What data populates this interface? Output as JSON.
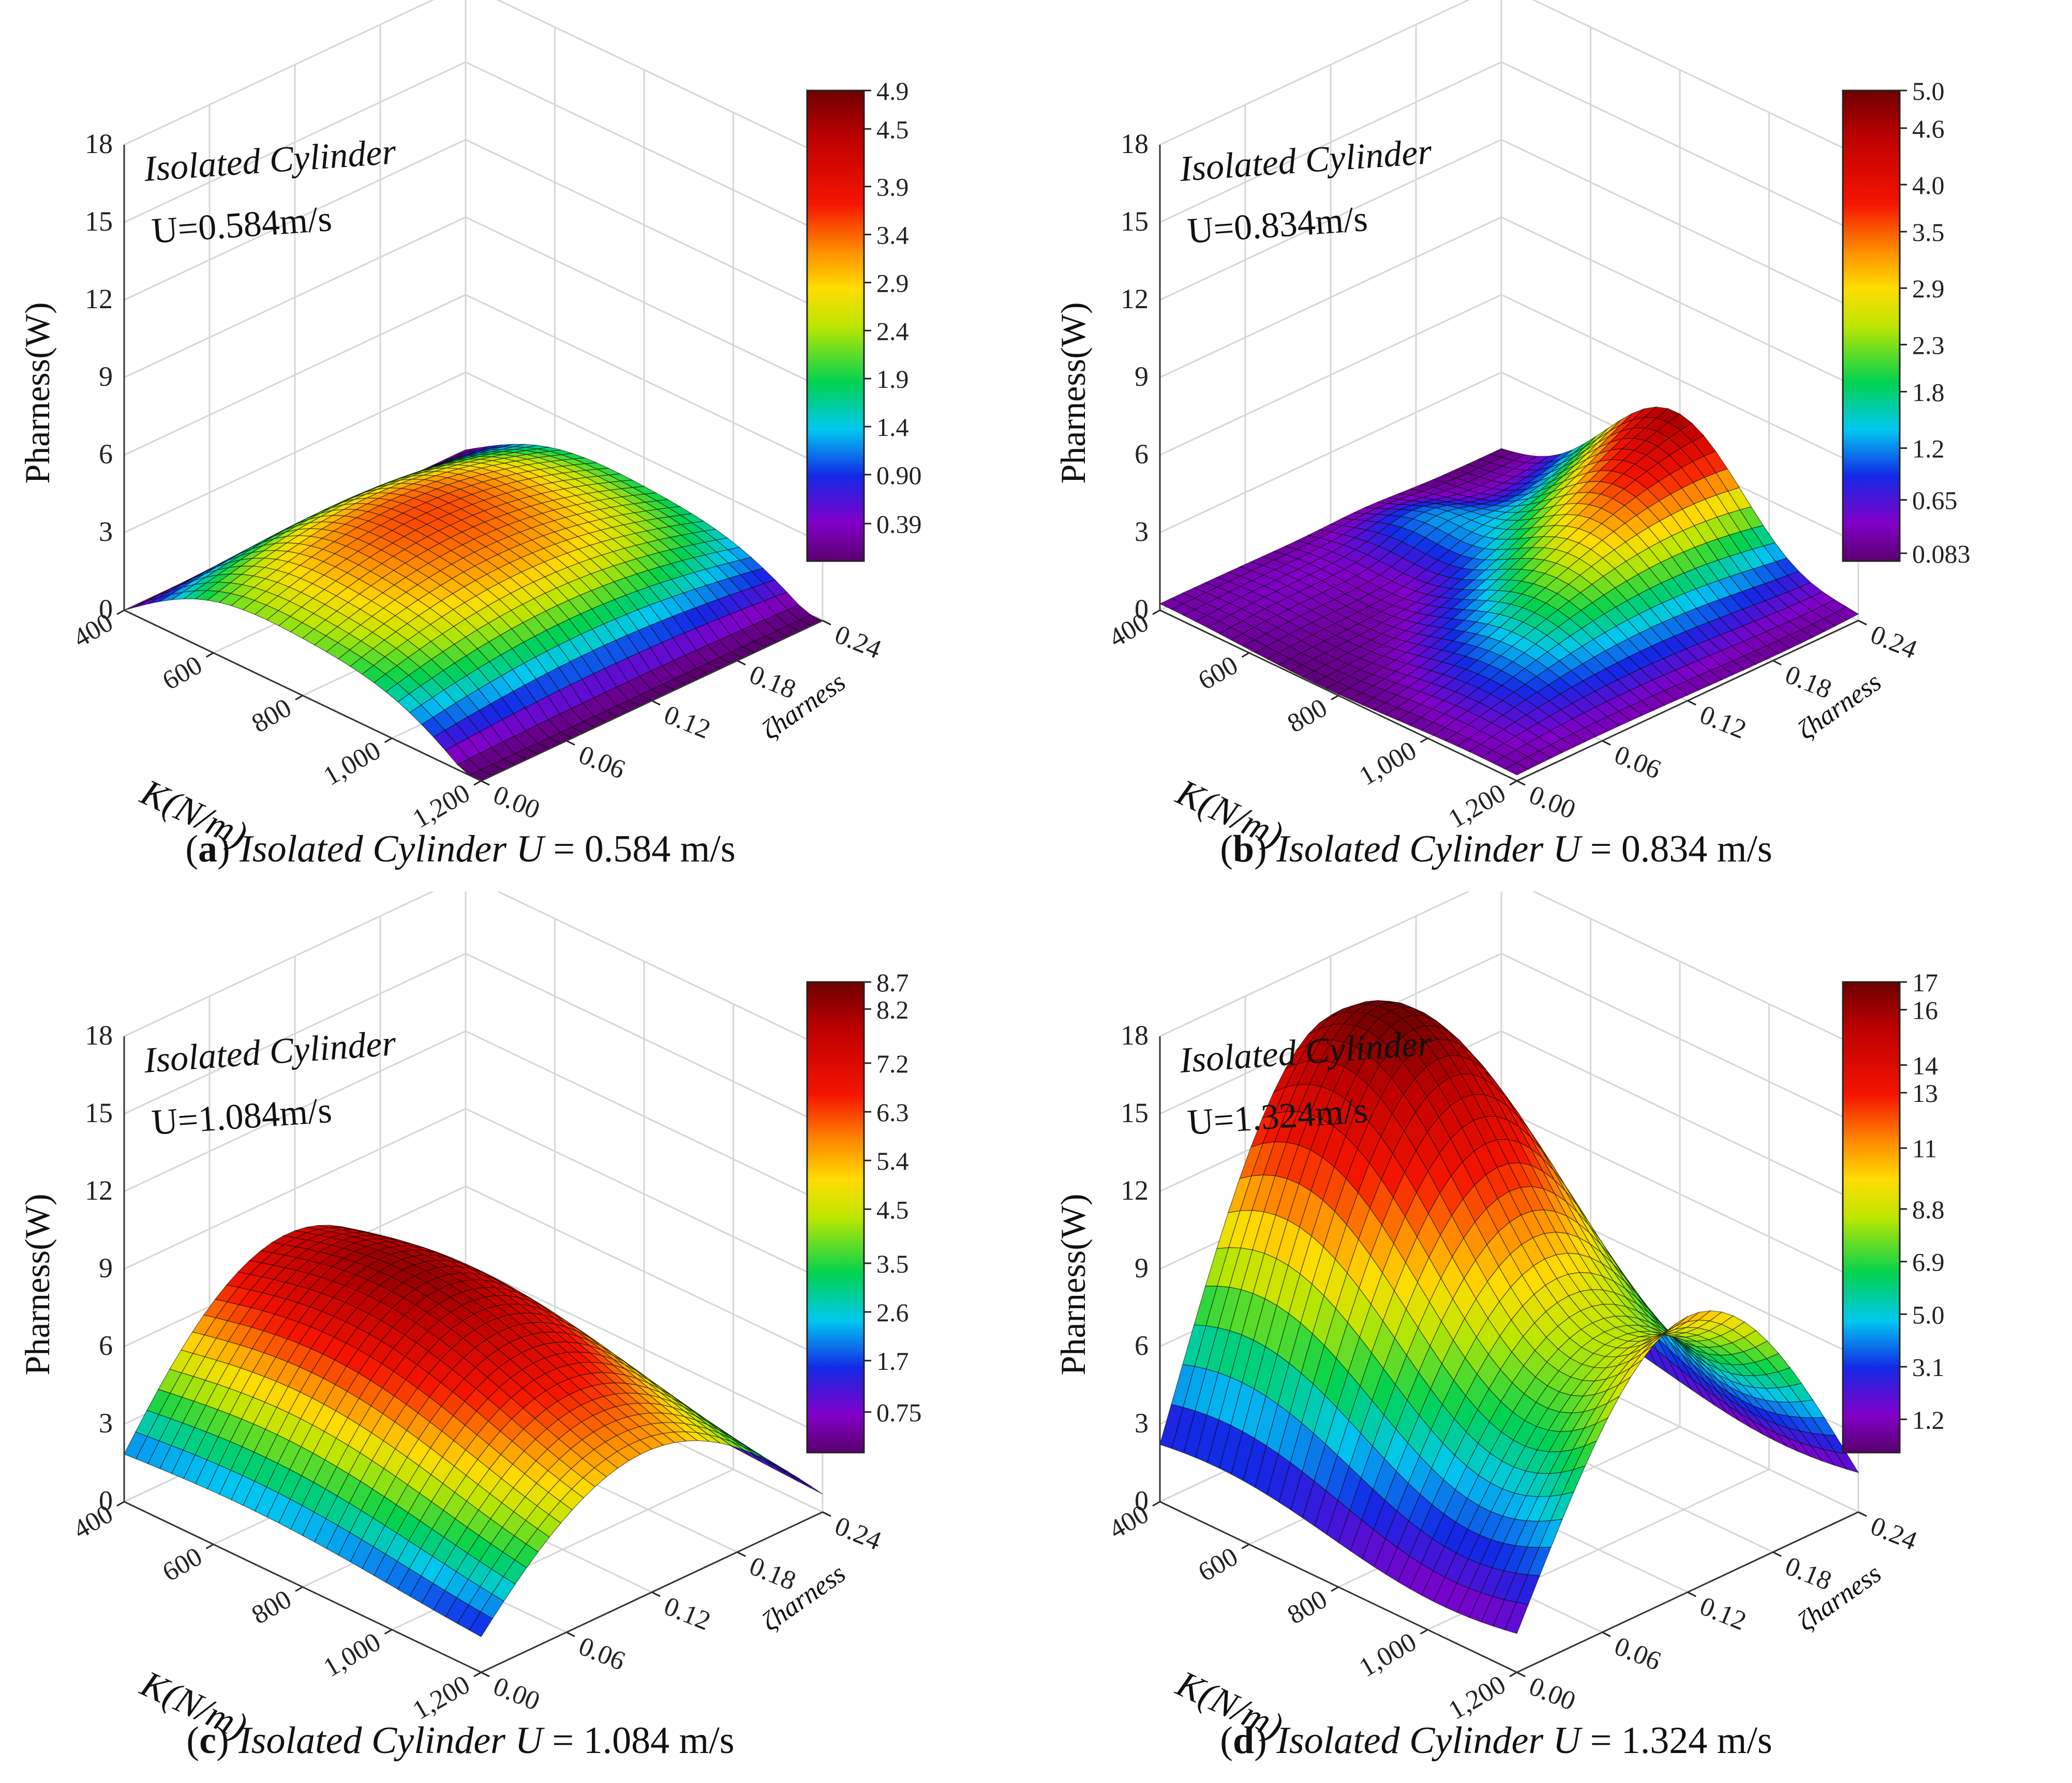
{
  "figure": {
    "panels": [
      {
        "id": "a",
        "caption": {
          "label": "a",
          "prefix": "Isolated Cylinder U",
          "value": "0.584 m/s"
        },
        "annotation": {
          "title": "Isolated Cylinder",
          "speed": "U=0.584m/s"
        },
        "colorbar_ticks": [
          "4.9",
          "4.5",
          "3.9",
          "3.4",
          "2.9",
          "2.4",
          "1.9",
          "1.4",
          "0.90",
          "0.39"
        ]
      },
      {
        "id": "b",
        "caption": {
          "label": "b",
          "prefix": "Isolated Cylinder U",
          "value": "0.834 m/s"
        },
        "annotation": {
          "title": "Isolated Cylinder",
          "speed": "U=0.834m/s"
        },
        "colorbar_ticks": [
          "5.0",
          "4.6",
          "4.0",
          "3.5",
          "2.9",
          "2.3",
          "1.8",
          "1.2",
          "0.65",
          "0.083"
        ]
      },
      {
        "id": "c",
        "caption": {
          "label": "c",
          "prefix": "Isolated Cylinder U",
          "value": "1.084 m/s"
        },
        "annotation": {
          "title": "Isolated Cylinder",
          "speed": "U=1.084m/s"
        },
        "colorbar_ticks": [
          "8.7",
          "8.2",
          "7.2",
          "6.3",
          "5.4",
          "4.5",
          "3.5",
          "2.6",
          "1.7",
          "0.75"
        ]
      },
      {
        "id": "d",
        "caption": {
          "label": "d",
          "prefix": "Isolated Cylinder U",
          "value": "1.324 m/s"
        },
        "annotation": {
          "title": "Isolated Cylinder",
          "speed": "U=1.324m/s"
        },
        "colorbar_ticks": [
          "17",
          "16",
          "14",
          "13",
          "11",
          "8.8",
          "6.9",
          "5.0",
          "3.1",
          "1.2"
        ]
      }
    ]
  },
  "chart_data": [
    {
      "type": "surface3d",
      "panel": "a",
      "zlabel": "Pharness(W)",
      "xlabel": "K(N/m)",
      "ylabel": "ζharness",
      "z_ticks": [
        "0",
        "3",
        "6",
        "9",
        "12",
        "15",
        "18"
      ],
      "x_ticks": [
        "400",
        "600",
        "800",
        "1,000",
        "1,200"
      ],
      "y_ticks": [
        "0.00",
        "0.06",
        "0.12",
        "0.18",
        "0.24"
      ],
      "zlim": [
        0,
        18
      ],
      "colorbar_range": [
        0,
        4.9
      ],
      "approx_peak": 4.9
    },
    {
      "type": "surface3d",
      "panel": "b",
      "zlabel": "Pharness(W)",
      "xlabel": "K(N/m)",
      "ylabel": "ζharness",
      "z_ticks": [
        "0",
        "3",
        "6",
        "9",
        "12",
        "15",
        "18"
      ],
      "x_ticks": [
        "400",
        "600",
        "800",
        "1,000",
        "1,200"
      ],
      "y_ticks": [
        "0.00",
        "0.06",
        "0.12",
        "0.18",
        "0.24"
      ],
      "zlim": [
        0,
        18
      ],
      "colorbar_range": [
        0,
        5.0
      ],
      "approx_peak": 5.0
    },
    {
      "type": "surface3d",
      "panel": "c",
      "zlabel": "Pharness(W)",
      "xlabel": "K(N/m)",
      "ylabel": "ζharness",
      "z_ticks": [
        "0",
        "3",
        "6",
        "9",
        "12",
        "15",
        "18"
      ],
      "x_ticks": [
        "400",
        "600",
        "800",
        "1,000",
        "1,200"
      ],
      "y_ticks": [
        "0.00",
        "0.06",
        "0.12",
        "0.18",
        "0.24"
      ],
      "zlim": [
        0,
        18
      ],
      "colorbar_range": [
        0,
        8.7
      ],
      "approx_peak": 8.7
    },
    {
      "type": "surface3d",
      "panel": "d",
      "zlabel": "Pharness(W)",
      "xlabel": "K(N/m)",
      "ylabel": "ζharness",
      "z_ticks": [
        "0",
        "3",
        "6",
        "9",
        "12",
        "15",
        "18"
      ],
      "x_ticks": [
        "400",
        "600",
        "800",
        "1,000",
        "1,200"
      ],
      "y_ticks": [
        "0.00",
        "0.06",
        "0.12",
        "0.18",
        "0.24"
      ],
      "zlim": [
        0,
        18
      ],
      "colorbar_range": [
        0,
        17
      ],
      "approx_peak": 17
    }
  ]
}
